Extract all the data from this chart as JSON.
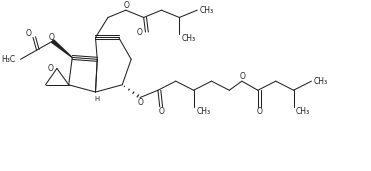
{
  "figsize": [
    3.71,
    1.71
  ],
  "dpi": 100,
  "bg_color": "#ffffff",
  "line_color": "#222222",
  "lw": 0.75,
  "text_color": "#222222",
  "fontsize": 5.5,
  "xlim": [
    0,
    10
  ],
  "ylim": [
    0,
    4.6
  ]
}
